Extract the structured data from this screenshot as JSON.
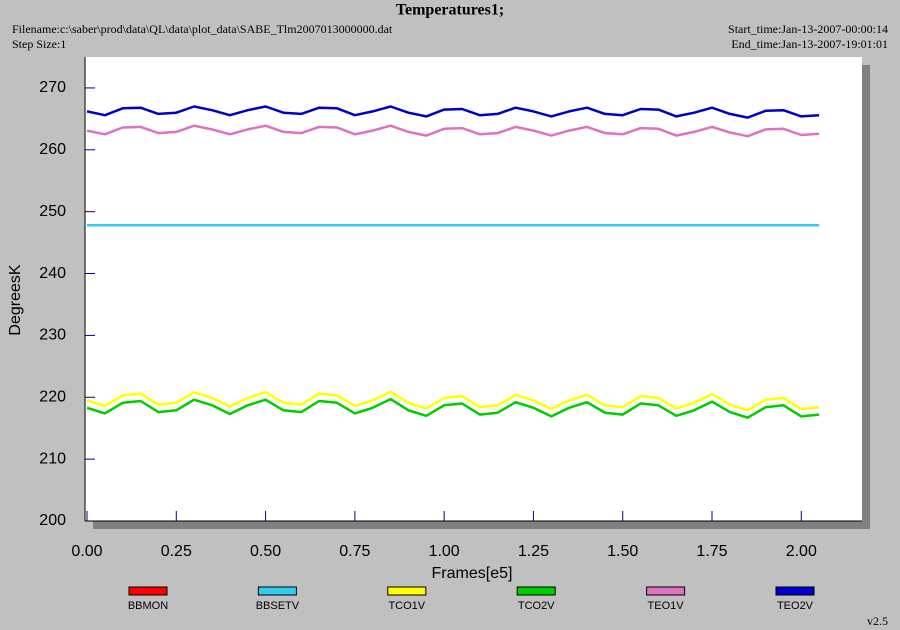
{
  "chart_data": {
    "type": "line",
    "title": "Temperatures1;",
    "filename": "Filename:c:\\saber\\prod\\data\\QL\\data\\plot_data\\SABE_Tlm2007013000000.dat",
    "step_size": "Step Size:1",
    "start_time": "Start_time:Jan-13-2007-00:00:14",
    "end_time": "End_time:Jan-13-2007-19:01:01",
    "version": "v2.5",
    "xlabel": "Frames[e5]",
    "ylabel": "DegreesK",
    "xlim": [
      0,
      2.17
    ],
    "ylim": [
      200,
      275
    ],
    "xticks": [
      {
        "value": 0,
        "label": "0.00"
      },
      0.25,
      {
        "value": 0.5,
        "label": "0.50"
      },
      0.75,
      {
        "value": 1,
        "label": "1.00"
      },
      1.25,
      {
        "value": 1.5,
        "label": "1.50"
      },
      1.75,
      {
        "value": 2,
        "label": "2.00"
      }
    ],
    "yticks": [
      200,
      210,
      220,
      230,
      240,
      250,
      260,
      270
    ],
    "x": [
      0,
      0.05,
      0.1,
      0.15,
      0.2,
      0.25,
      0.3,
      0.35,
      0.4,
      0.45,
      0.5,
      0.55,
      0.6,
      0.65,
      0.7,
      0.75,
      0.8,
      0.85,
      0.9,
      0.95,
      1,
      1.05,
      1.1,
      1.15,
      1.2,
      1.25,
      1.3,
      1.35,
      1.4,
      1.45,
      1.5,
      1.55,
      1.6,
      1.65,
      1.7,
      1.75,
      1.8,
      1.85,
      1.9,
      1.95,
      2,
      2.05
    ],
    "series": [
      {
        "name": "BBMON",
        "color": "#ff0000",
        "values": [
          null,
          null,
          null,
          null,
          null,
          null,
          null,
          null,
          null,
          null,
          null,
          null,
          null,
          null,
          null,
          null,
          null,
          null,
          null,
          null,
          null,
          null,
          null,
          null,
          null,
          null,
          null,
          null,
          null,
          null,
          null,
          null,
          null,
          null,
          null,
          null,
          null,
          null,
          null,
          null,
          null,
          null
        ]
      },
      {
        "name": "BBSETV",
        "color": "#33ccee",
        "values": [
          247.8,
          247.8,
          247.8,
          247.8,
          247.8,
          247.8,
          247.8,
          247.8,
          247.8,
          247.8,
          247.8,
          247.8,
          247.8,
          247.8,
          247.8,
          247.8,
          247.8,
          247.8,
          247.8,
          247.8,
          247.8,
          247.8,
          247.8,
          247.8,
          247.8,
          247.8,
          247.8,
          247.8,
          247.8,
          247.8,
          247.8,
          247.8,
          247.8,
          247.8,
          247.8,
          247.8,
          247.8,
          247.8,
          247.8,
          247.8,
          247.8,
          247.8
        ]
      },
      {
        "name": "TCO1V",
        "color": "#ffff00",
        "values": [
          219.5,
          218.6,
          220.3,
          220.6,
          218.8,
          219.1,
          220.8,
          219.9,
          218.5,
          219.9,
          220.8,
          219.1,
          218.8,
          220.6,
          220.3,
          218.6,
          219.5,
          220.9,
          219.1,
          218.2,
          219.9,
          220.2,
          218.4,
          218.7,
          220.4,
          219.5,
          218.1,
          219.5,
          220.4,
          218.7,
          218.4,
          220.2,
          219.9,
          218.2,
          219.1,
          220.5,
          218.8,
          217.9,
          219.6,
          219.9,
          218.1,
          218.4
        ]
      },
      {
        "name": "TCO2V",
        "color": "#00cc00",
        "values": [
          218.3,
          217.4,
          219.1,
          219.4,
          217.6,
          217.9,
          219.6,
          218.7,
          217.3,
          218.7,
          219.6,
          217.9,
          217.6,
          219.4,
          219.1,
          217.4,
          218.3,
          219.7,
          217.9,
          217.0,
          218.7,
          219.0,
          217.2,
          217.5,
          219.2,
          218.3,
          216.9,
          218.3,
          219.2,
          217.5,
          217.2,
          219.0,
          218.7,
          217.0,
          217.9,
          219.3,
          217.6,
          216.7,
          218.4,
          218.7,
          216.9,
          217.2
        ]
      },
      {
        "name": "TEO1V",
        "color": "#e070c0",
        "values": [
          263.1,
          262.5,
          263.6,
          263.7,
          262.7,
          262.9,
          263.9,
          263.3,
          262.5,
          263.3,
          263.9,
          262.9,
          262.7,
          263.7,
          263.6,
          262.5,
          263.1,
          263.9,
          262.9,
          262.3,
          263.4,
          263.5,
          262.5,
          262.7,
          263.7,
          263.1,
          262.3,
          263.1,
          263.7,
          262.7,
          262.5,
          263.5,
          263.4,
          262.3,
          262.9,
          263.7,
          262.8,
          262.2,
          263.3,
          263.4,
          262.4,
          262.6
        ]
      },
      {
        "name": "TEO2V",
        "color": "#0000cc",
        "values": [
          266.2,
          265.6,
          266.7,
          266.8,
          265.8,
          266.0,
          267.0,
          266.4,
          265.6,
          266.4,
          267.0,
          266.0,
          265.8,
          266.8,
          266.7,
          265.6,
          266.2,
          267.0,
          266.0,
          265.4,
          266.5,
          266.6,
          265.6,
          265.8,
          266.8,
          266.2,
          265.4,
          266.2,
          266.8,
          265.8,
          265.6,
          266.6,
          266.5,
          265.4,
          266.0,
          266.8,
          265.8,
          265.2,
          266.3,
          266.4,
          265.4,
          265.6
        ]
      }
    ]
  }
}
